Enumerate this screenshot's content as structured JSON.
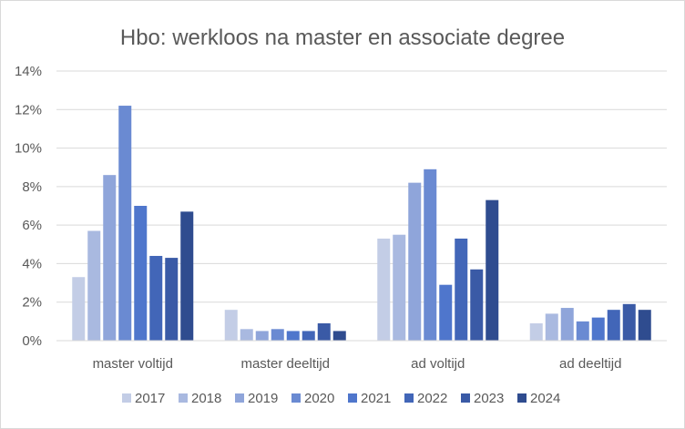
{
  "chart_data": {
    "type": "bar",
    "title": "Hbo: werkloos na master en associate degree",
    "xlabel": "",
    "ylabel": "",
    "ylim": [
      0,
      14
    ],
    "y_ticks": [
      "0%",
      "2%",
      "4%",
      "6%",
      "8%",
      "10%",
      "12%",
      "14%"
    ],
    "y_tick_values": [
      0,
      2,
      4,
      6,
      8,
      10,
      12,
      14
    ],
    "grid": true,
    "legend_position": "bottom",
    "categories": [
      "master voltijd",
      "master deeltijd",
      "ad voltijd",
      "ad deeltijd"
    ],
    "series": [
      {
        "name": "2017",
        "color": "#c3cde6",
        "values": [
          3.3,
          1.6,
          5.3,
          0.9
        ]
      },
      {
        "name": "2018",
        "color": "#a9b9e0",
        "values": [
          5.7,
          0.6,
          5.5,
          1.4
        ]
      },
      {
        "name": "2019",
        "color": "#8fa5da",
        "values": [
          8.6,
          0.5,
          8.2,
          1.7
        ]
      },
      {
        "name": "2020",
        "color": "#6a8ad2",
        "values": [
          12.2,
          0.6,
          8.9,
          1.0
        ]
      },
      {
        "name": "2021",
        "color": "#4f76cc",
        "values": [
          7.0,
          0.5,
          2.9,
          1.2
        ]
      },
      {
        "name": "2022",
        "color": "#4266b8",
        "values": [
          4.4,
          0.5,
          5.3,
          1.6
        ]
      },
      {
        "name": "2023",
        "color": "#3a5aa6",
        "values": [
          4.3,
          0.9,
          3.7,
          1.9
        ]
      },
      {
        "name": "2024",
        "color": "#2f4c8f",
        "values": [
          6.7,
          0.5,
          7.3,
          1.6
        ]
      }
    ]
  }
}
